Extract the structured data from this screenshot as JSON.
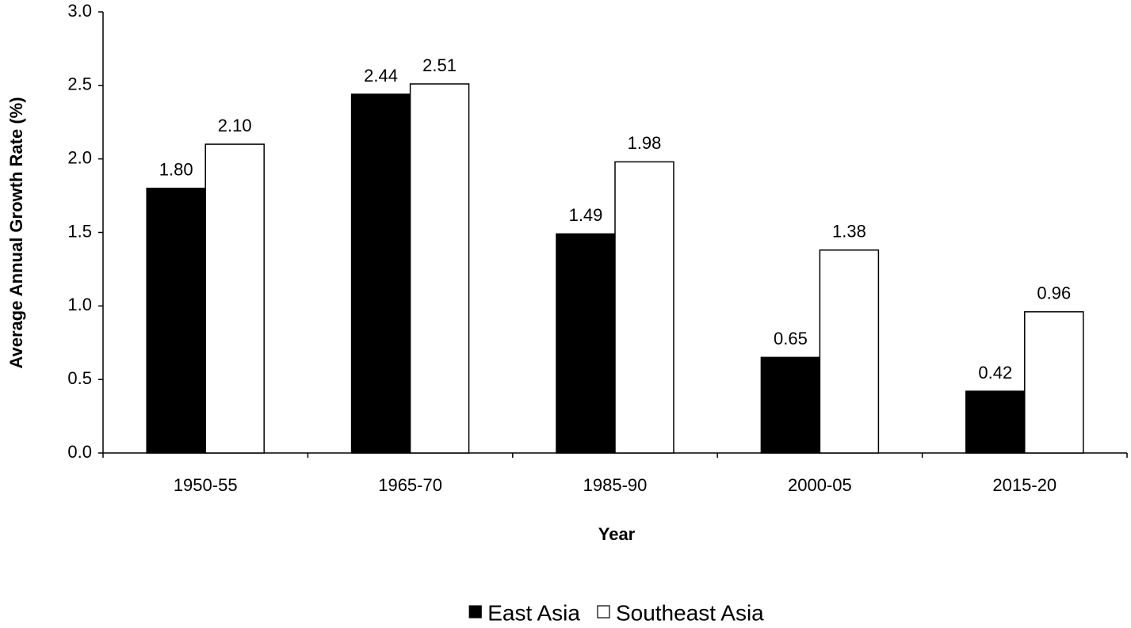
{
  "chart_data": {
    "type": "bar",
    "x_label": "Year",
    "y_label": "Average Annual Growth Rate (%)",
    "categories": [
      "1950-55",
      "1965-70",
      "1985-90",
      "2000-05",
      "2015-20"
    ],
    "series": [
      {
        "name": "East Asia",
        "color": "#000000",
        "values": [
          1.8,
          2.44,
          1.49,
          0.65,
          0.42
        ],
        "value_labels": [
          "1.80",
          "2.44",
          "1.49",
          "0.65",
          "0.42"
        ]
      },
      {
        "name": "Southeast Asia",
        "color": "#ffffff",
        "values": [
          2.1,
          2.51,
          1.98,
          1.38,
          0.96
        ],
        "value_labels": [
          "2.10",
          "2.51",
          "1.98",
          "1.38",
          "0.96"
        ]
      }
    ],
    "ylim": [
      0,
      3
    ],
    "yticks": [
      {
        "value": 0,
        "label": "0.0"
      },
      {
        "value": 0.5,
        "label": "0.5"
      },
      {
        "value": 1,
        "label": "1.0"
      },
      {
        "value": 1.5,
        "label": "1.5"
      },
      {
        "value": 2,
        "label": "2.0"
      },
      {
        "value": 2.5,
        "label": "2.5"
      },
      {
        "value": 3,
        "label": "3.0"
      }
    ],
    "grid": false,
    "legend_position": "bottom"
  }
}
